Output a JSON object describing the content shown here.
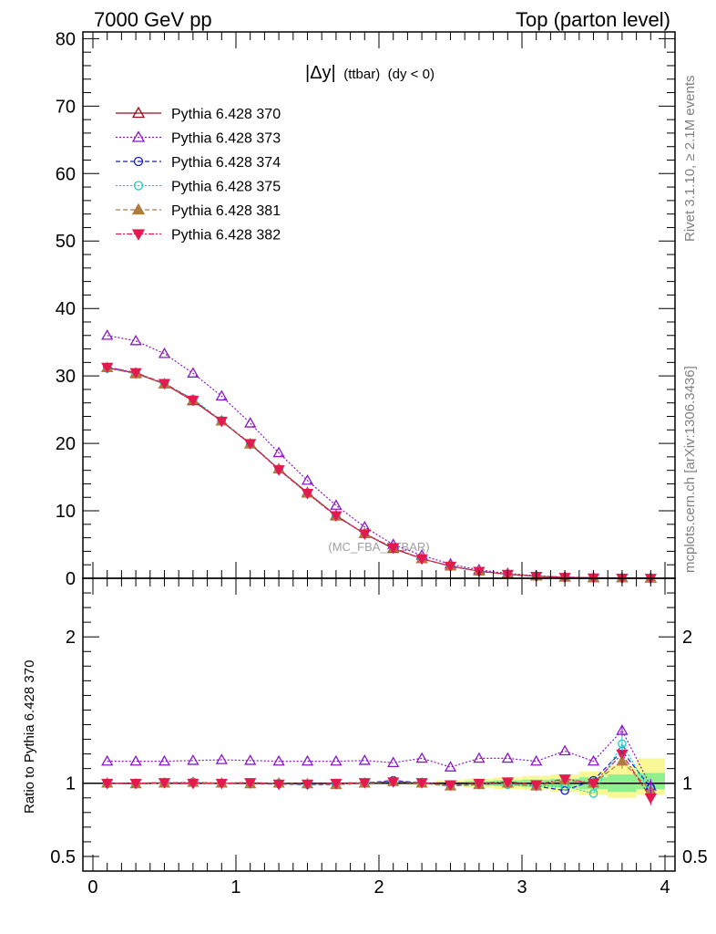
{
  "header": {
    "left": "7000 GeV pp",
    "right": "Top (parton level)"
  },
  "side_labels": {
    "rivet": "Rivet 3.1.10, ≥ 2.1M events",
    "mcplots": "mcplots.cern.ch [arXiv:1306.3436]"
  },
  "plot_title": {
    "main": "|Δy|",
    "sub1": "(ttbar)",
    "sub2": "(dy < 0)"
  },
  "watermark": "(MC_FBA_TTBAR)",
  "ratio_ylabel": "Ratio to Pythia 6.428 370",
  "colors": {
    "s370": "#9a0d16",
    "s373": "#8a16c8",
    "s374": "#1a1acd",
    "s375": "#17cfc4",
    "s381": "#b07b42",
    "s382": "#e21a50",
    "band_inner": "#8ff08f",
    "band_outer": "#f8f896"
  },
  "chart_data": [
    {
      "type": "line",
      "panel": "main",
      "x": [
        0.1,
        0.3,
        0.5,
        0.7,
        0.9,
        1.1,
        1.3,
        1.5,
        1.7,
        1.9,
        2.1,
        2.3,
        2.5,
        2.7,
        2.9,
        3.1,
        3.3,
        3.5,
        3.7,
        3.9
      ],
      "xlim": [
        -0.07,
        4.07
      ],
      "ylim": [
        0,
        81
      ],
      "yticks": [
        0,
        10,
        20,
        30,
        40,
        50,
        60,
        70,
        80
      ],
      "xticks": [
        0,
        1,
        2,
        3,
        4
      ],
      "series": [
        {
          "name": "Pythia 6.428 370",
          "key": "s370",
          "values": [
            31.2,
            30.4,
            28.8,
            26.3,
            23.3,
            19.9,
            16.2,
            12.7,
            9.3,
            6.6,
            4.4,
            2.9,
            1.8,
            1.05,
            0.6,
            0.3,
            0.15,
            0.07,
            0.03,
            0.012
          ]
        },
        {
          "name": "Pythia 6.428 373",
          "key": "s373",
          "values": [
            36.0,
            35.2,
            33.3,
            30.4,
            27.0,
            23.0,
            18.6,
            14.5,
            10.8,
            7.6,
            5.0,
            3.4,
            2.1,
            1.25,
            0.72,
            0.36,
            0.18,
            0.08,
            0.035,
            0.014
          ]
        },
        {
          "name": "Pythia 6.428 374",
          "key": "s374",
          "values": [
            31.3,
            30.4,
            28.9,
            26.5,
            23.3,
            19.9,
            16.1,
            12.6,
            9.2,
            6.6,
            4.5,
            2.9,
            1.8,
            1.04,
            0.6,
            0.3,
            0.15,
            0.07,
            0.03,
            0.012
          ]
        },
        {
          "name": "Pythia 6.428 375",
          "key": "s375",
          "values": [
            31.1,
            30.4,
            28.8,
            26.6,
            23.4,
            20.0,
            16.2,
            12.6,
            9.3,
            6.6,
            4.5,
            2.9,
            1.8,
            1.05,
            0.6,
            0.3,
            0.15,
            0.07,
            0.03,
            0.012
          ]
        },
        {
          "name": "Pythia 6.428 381",
          "key": "s381",
          "values": [
            31.2,
            30.3,
            28.8,
            26.4,
            23.3,
            19.9,
            16.2,
            12.6,
            9.2,
            6.6,
            4.5,
            2.9,
            1.8,
            1.04,
            0.6,
            0.3,
            0.15,
            0.07,
            0.03,
            0.012
          ]
        },
        {
          "name": "Pythia 6.428 382",
          "key": "s382",
          "values": [
            31.3,
            30.5,
            28.9,
            26.4,
            23.3,
            20.0,
            16.1,
            12.6,
            9.3,
            6.6,
            4.5,
            2.9,
            1.8,
            1.05,
            0.6,
            0.3,
            0.15,
            0.07,
            0.03,
            0.012
          ]
        }
      ]
    },
    {
      "type": "line",
      "panel": "ratio",
      "x": [
        0.1,
        0.3,
        0.5,
        0.7,
        0.9,
        1.1,
        1.3,
        1.5,
        1.7,
        1.9,
        2.1,
        2.3,
        2.5,
        2.7,
        2.9,
        3.1,
        3.3,
        3.5,
        3.7,
        3.9
      ],
      "xlim": [
        -0.07,
        4.07
      ],
      "ylim": [
        0.4,
        2.4
      ],
      "yticks": [
        0.5,
        1,
        2
      ],
      "xticks": [
        0,
        1,
        2,
        3,
        4
      ],
      "reference": 1,
      "series": [
        {
          "name": "Pythia 6.428 373",
          "key": "s373",
          "values": [
            1.15,
            1.15,
            1.15,
            1.155,
            1.16,
            1.155,
            1.15,
            1.15,
            1.15,
            1.155,
            1.14,
            1.17,
            1.11,
            1.17,
            1.17,
            1.15,
            1.22,
            1.15,
            1.36,
            0.98
          ]
        },
        {
          "name": "Pythia 6.428 374",
          "key": "s374",
          "values": [
            1.0,
            0.995,
            1.0,
            1.005,
            1.0,
            0.995,
            0.995,
            0.99,
            0.99,
            1.0,
            1.02,
            1.0,
            0.99,
            0.99,
            1.0,
            0.98,
            0.95,
            1.02,
            1.22,
            0.97
          ]
        },
        {
          "name": "Pythia 6.428 375",
          "key": "s375",
          "values": [
            0.995,
            0.995,
            1.0,
            1.01,
            1.0,
            1.005,
            1.0,
            0.99,
            0.995,
            1.0,
            1.01,
            1.0,
            0.98,
            1.0,
            0.99,
            0.98,
            0.98,
            0.93,
            1.27,
            0.93
          ]
        },
        {
          "name": "Pythia 6.428 381",
          "key": "s381",
          "values": [
            1.0,
            0.995,
            1.0,
            1.005,
            1.0,
            0.995,
            1.0,
            0.995,
            0.99,
            1.0,
            1.01,
            1.0,
            0.98,
            0.99,
            1.0,
            0.98,
            1.02,
            1.0,
            1.15,
            0.95
          ]
        },
        {
          "name": "Pythia 6.428 382",
          "key": "s382",
          "values": [
            1.0,
            1.0,
            1.005,
            1.0,
            1.0,
            1.005,
            0.995,
            0.995,
            1.0,
            1.005,
            1.01,
            1.005,
            0.99,
            1.0,
            1.01,
            0.99,
            1.03,
            1.0,
            1.2,
            0.9
          ]
        }
      ],
      "band": {
        "x_edges": [
          2.2,
          2.4,
          2.6,
          2.8,
          3.0,
          3.2,
          3.4,
          3.6,
          3.8,
          4.0
        ],
        "inner": [
          [
            0.995,
            1.005
          ],
          [
            0.99,
            1.01
          ],
          [
            0.985,
            1.015
          ],
          [
            0.98,
            1.02
          ],
          [
            0.975,
            1.025
          ],
          [
            0.97,
            1.03
          ],
          [
            0.96,
            1.04
          ],
          [
            0.94,
            1.06
          ],
          [
            0.96,
            1.07
          ]
        ],
        "outer": [
          [
            0.99,
            1.01
          ],
          [
            0.98,
            1.02
          ],
          [
            0.97,
            1.03
          ],
          [
            0.96,
            1.04
          ],
          [
            0.955,
            1.05
          ],
          [
            0.94,
            1.06
          ],
          [
            0.92,
            1.08
          ],
          [
            0.9,
            1.12
          ],
          [
            0.92,
            1.17
          ]
        ]
      }
    }
  ]
}
